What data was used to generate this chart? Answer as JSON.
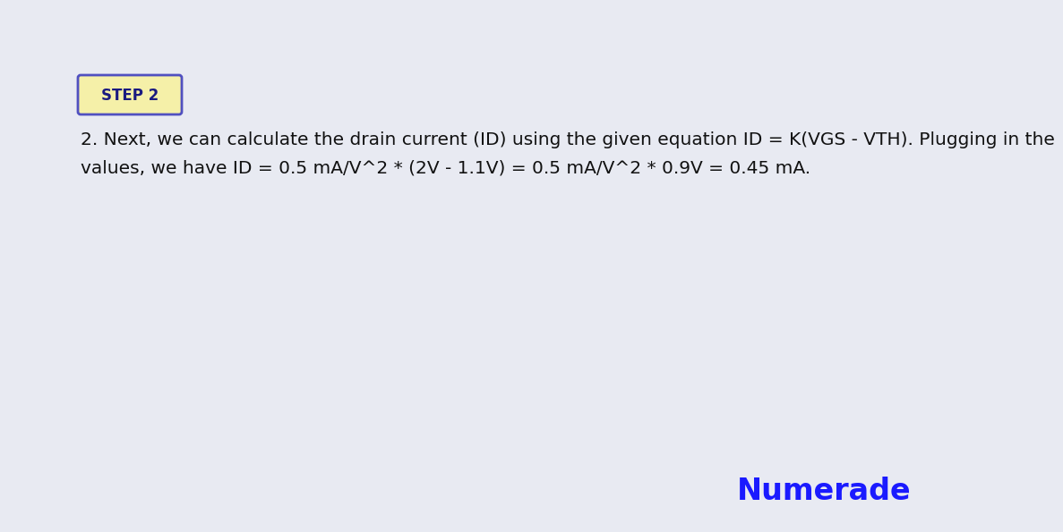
{
  "background_color": "#e8eaf2",
  "step_label": "STEP 2",
  "step_box_facecolor": "#f5f0a8",
  "step_box_edgecolor": "#5050c0",
  "step_label_color": "#1a1a80",
  "step_fontsize": 12,
  "text_line1": "2. Next, we can calculate the drain current (ID) using the given equation ID = K(VGS - VTH). Plugging in the",
  "text_line2": "values, we have ID = 0.5 mA/V^2 * (2V - 1.1V) = 0.5 mA/V^2 * 0.9V = 0.45 mA.",
  "text_color": "#111111",
  "text_fontsize": 14.5,
  "numerade_text": "Numerade",
  "numerade_color": "#1a1aff",
  "numerade_fontsize": 24
}
